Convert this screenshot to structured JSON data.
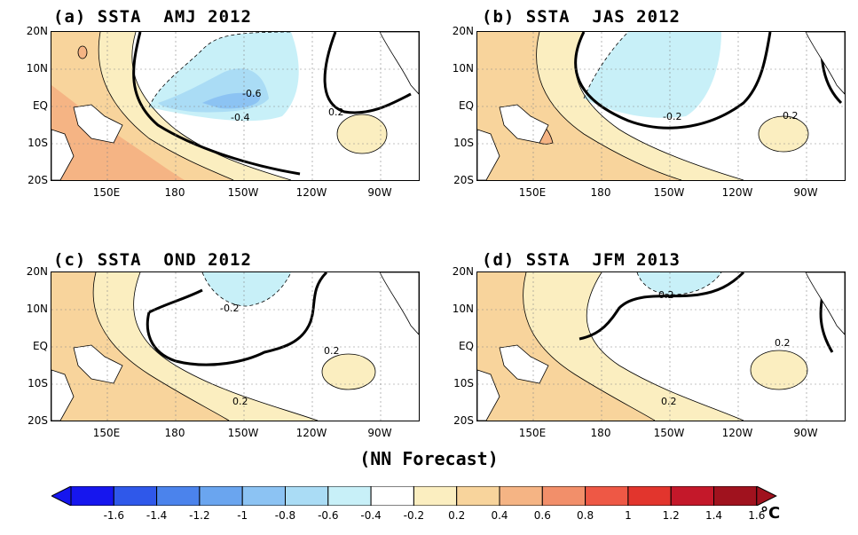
{
  "panels": [
    {
      "id": "a",
      "title": "(a) SSTA  AMJ 2012",
      "labels": [
        "-0.6",
        "-0.4",
        "0.2"
      ]
    },
    {
      "id": "b",
      "title": "(b) SSTA  JAS 2012",
      "labels": [
        "-0.2",
        "0.2"
      ]
    },
    {
      "id": "c",
      "title": "(c) SSTA  OND 2012",
      "labels": [
        "-0.2",
        "0.2",
        "0.2"
      ]
    },
    {
      "id": "d",
      "title": "(d) SSTA  JFM 2013",
      "labels": [
        "-0.2",
        "0.2",
        "0.2"
      ]
    }
  ],
  "lat_ticks": [
    "20N",
    "10N",
    "EQ",
    "10S",
    "20S"
  ],
  "lon_ticks": [
    "150E",
    "180",
    "150W",
    "120W",
    "90W"
  ],
  "caption": "(NN Forecast)",
  "colorbar": {
    "labels": [
      "-1.6",
      "-1.4",
      "-1.2",
      "-1",
      "-0.8",
      "-0.6",
      "-0.4",
      "-0.2",
      "0.2",
      "0.4",
      "0.6",
      "0.8",
      "1",
      "1.2",
      "1.4",
      "1.6"
    ],
    "unit": "°C",
    "colors": [
      "#1616ee",
      "#2f58ea",
      "#4b83ec",
      "#6aa5ef",
      "#8cc3f3",
      "#aadcf5",
      "#c8f0f8",
      "#ffffff",
      "#fbeec0",
      "#f8d49c",
      "#f5b484",
      "#f28f6a",
      "#ee5845",
      "#e2352d",
      "#c4182a",
      "#a0121e"
    ]
  },
  "colors": {
    "neg_weak": "#c8f0f8",
    "neg_mid": "#aadcf5",
    "neg_strong": "#8cc3f3",
    "pos_weak": "#fbeec0",
    "pos_mid": "#f8d49c",
    "pos_strong": "#f5b484",
    "pos_strongest": "#f28f6a",
    "land": "#ffffff"
  }
}
